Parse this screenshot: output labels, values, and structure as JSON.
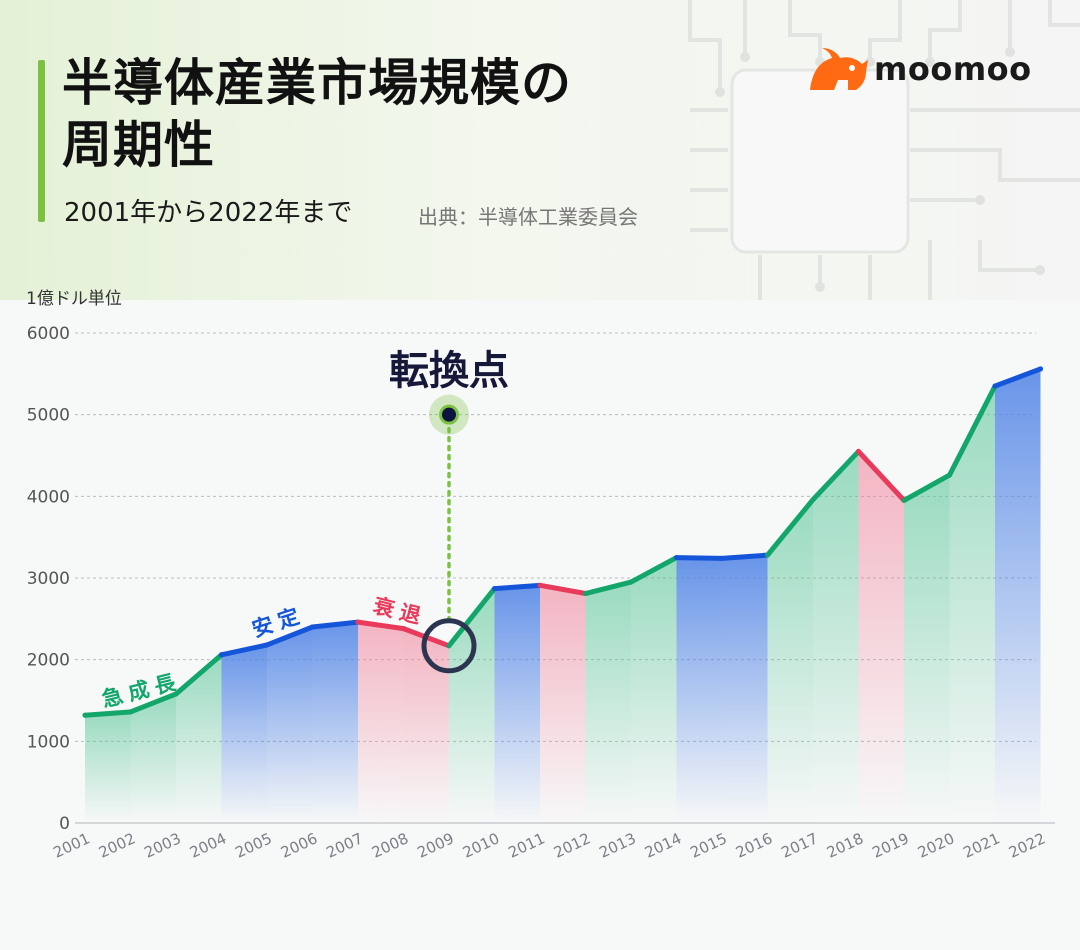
{
  "header": {
    "title_line1": "半導体産業市場規模の",
    "title_line2": "周期性",
    "subtitle": "2001年から2022年まで",
    "source": "出典：半導体工業委員会"
  },
  "brand": {
    "name": "moomoo",
    "accent": "#ff6a13"
  },
  "colors": {
    "growth": "#12a66a",
    "stable": "#1455d9",
    "recession": "#e83a5a",
    "turning": "#7cc142",
    "circle": "#2c3550"
  },
  "chart_data": {
    "type": "area",
    "ylabel": "1億ドル単位",
    "ylim": [
      0,
      6000
    ],
    "yticks": [
      0,
      1000,
      2000,
      3000,
      4000,
      5000,
      6000
    ],
    "grid": true,
    "x": [
      "2001",
      "2002",
      "2003",
      "2004",
      "2005",
      "2006",
      "2007",
      "2008",
      "2009",
      "2010",
      "2011",
      "2012",
      "2013",
      "2014",
      "2015",
      "2016",
      "2017",
      "2018",
      "2019",
      "2020",
      "2021",
      "2022"
    ],
    "values": [
      1320,
      1360,
      1580,
      2060,
      2180,
      2400,
      2460,
      2380,
      2170,
      2870,
      2910,
      2810,
      2950,
      3250,
      3240,
      3280,
      3960,
      4550,
      3950,
      4260,
      5350,
      5560
    ],
    "segment_phases": [
      "growth",
      "growth",
      "growth",
      "stable",
      "stable",
      "stable",
      "recession",
      "recession",
      "growth",
      "stable",
      "recession",
      "growth",
      "growth",
      "stable",
      "stable",
      "growth",
      "growth",
      "recession",
      "growth",
      "growth",
      "stable"
    ],
    "annotations": [
      {
        "text": "急成長",
        "phase": "growth"
      },
      {
        "text": "安定",
        "phase": "stable"
      },
      {
        "text": "衰退",
        "phase": "recession"
      },
      {
        "text": "転換点",
        "year": "2009",
        "marker_value": 5000
      }
    ]
  }
}
